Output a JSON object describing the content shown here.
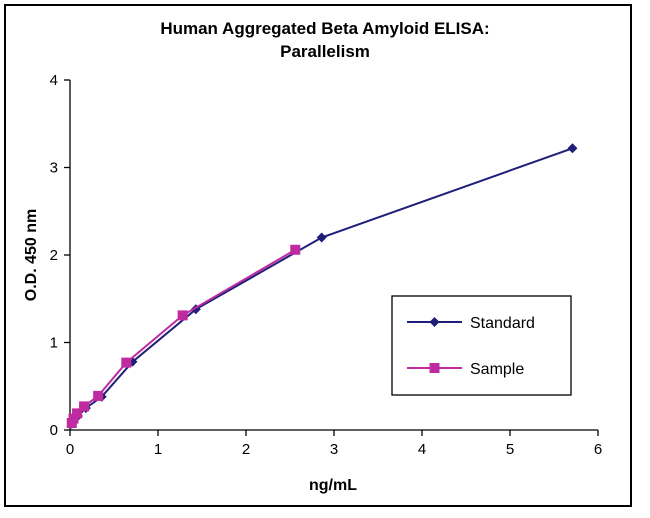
{
  "chart_data": {
    "type": "line",
    "title_line1": "Human Aggregated Beta Amyloid ELISA:",
    "title_line2": "Parallelism",
    "xlabel": "ng/mL",
    "ylabel": "O.D. 450 nm",
    "xlim": [
      0,
      6
    ],
    "ylim": [
      0,
      4
    ],
    "x_ticks": [
      "0",
      "1",
      "2",
      "3",
      "4",
      "5",
      "6"
    ],
    "y_ticks": [
      "0",
      "1",
      "2",
      "3",
      "4"
    ],
    "grid": false,
    "legend_position": "bottom-right",
    "series": [
      {
        "name": "Standard",
        "color": "#1f1f7a",
        "marker": "diamond",
        "x": [
          0.02,
          0.04,
          0.09,
          0.18,
          0.36,
          0.71,
          1.43,
          2.86,
          5.71
        ],
        "y": [
          0.07,
          0.11,
          0.16,
          0.25,
          0.38,
          0.78,
          1.38,
          2.2,
          3.22
        ]
      },
      {
        "name": "Sample",
        "color": "#c02aa0",
        "marker": "square",
        "x": [
          0.02,
          0.04,
          0.08,
          0.16,
          0.32,
          0.64,
          1.28,
          2.56
        ],
        "y": [
          0.08,
          0.13,
          0.19,
          0.27,
          0.39,
          0.77,
          1.31,
          2.06
        ]
      }
    ]
  }
}
